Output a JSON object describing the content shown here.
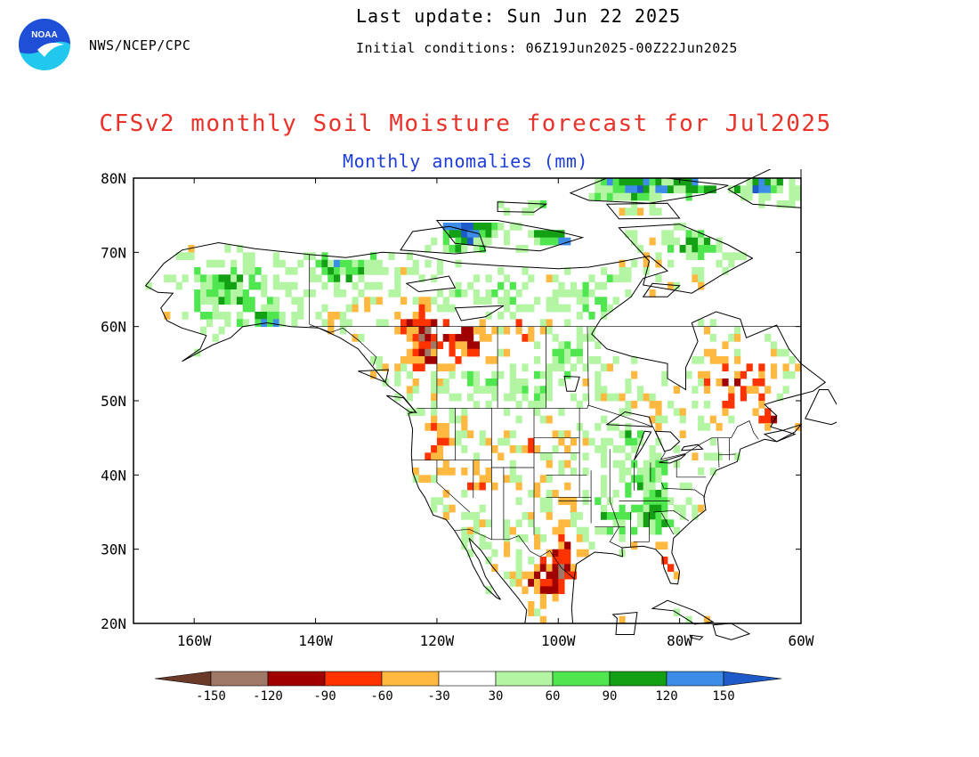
{
  "header": {
    "org": "NWS/NCEP/CPC",
    "last_update": "Last update: Sun Jun 22 2025",
    "initial_conditions": "Initial conditions: 06Z19Jun2025-00Z22Jun2025",
    "logo_text": "NOAA"
  },
  "map": {
    "title": "CFSv2 monthly Soil Moisture forecast for Jul2025",
    "subtitle": "Monthly anomalies (mm)",
    "lat_labels": [
      "80N",
      "70N",
      "60N",
      "50N",
      "40N",
      "30N",
      "20N"
    ],
    "lon_labels": [
      "160W",
      "140W",
      "120W",
      "100W",
      "80W",
      "60W"
    ],
    "extent": {
      "lon_min": -170,
      "lon_max": -60,
      "lat_min": 20,
      "lat_max": 80
    }
  },
  "legend": {
    "labels": [
      "-150",
      "-120",
      "-90",
      "-60",
      "-30",
      "30",
      "60",
      "90",
      "120",
      "150"
    ],
    "colors": [
      "#6b3a28",
      "#a07868",
      "#a00000",
      "#ff3300",
      "#ffb840",
      "#ffffff",
      "#b4f5a4",
      "#50e650",
      "#14a014",
      "#3c8ce8",
      "#1e5ac8"
    ]
  },
  "colors": {
    "title": "#e8322a",
    "subtitle": "#1d3fd8",
    "noaa_blue": "#1f4fd6",
    "noaa_cyan": "#22c7ee"
  }
}
